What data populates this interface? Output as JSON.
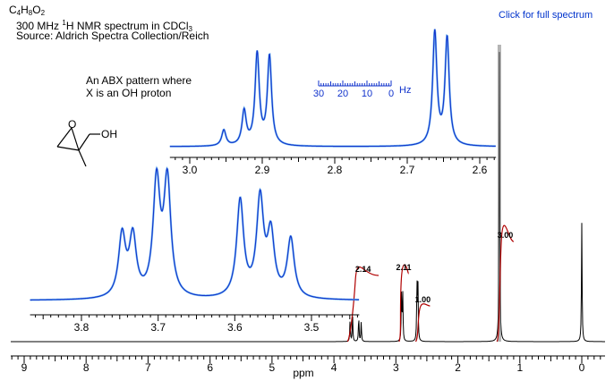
{
  "header": {
    "formula_parts": [
      "C",
      "4",
      "H",
      "8",
      "O",
      "2"
    ],
    "spectrum_pre": "300 MHz ",
    "spectrum_sup": "1",
    "spectrum_mid": "H NMR spectrum in CDCl",
    "spectrum_sub": "3",
    "source": "Source: Aldrich Spectra Collection/Reich",
    "link": "Click for full spectrum"
  },
  "note": {
    "line1": "An ABX pattern where",
    "line2": "X is an OH proton"
  },
  "structure": {
    "label": "OH"
  },
  "colors": {
    "main_trace": "#000000",
    "inset_trace": "#1133cc",
    "inset_overlay": "#55aaee",
    "integral": "#b00000",
    "link": "#0033cc"
  },
  "chart_data": [
    {
      "type": "line",
      "name": "main-spectrum",
      "xlabel": "ppm",
      "xlim": [
        9.3,
        -0.4
      ],
      "x_reversed": true,
      "xticks": [
        "9",
        "8",
        "7",
        "6",
        "5",
        "4",
        "3",
        "2",
        "1",
        "0"
      ],
      "peaks": [
        {
          "ppm": 3.74,
          "height": 0.07
        },
        {
          "ppm": 3.7,
          "height": 0.09
        },
        {
          "ppm": 3.6,
          "height": 0.085
        },
        {
          "ppm": 3.56,
          "height": 0.065
        },
        {
          "ppm": 2.91,
          "height": 0.16
        },
        {
          "ppm": 2.89,
          "height": 0.16
        },
        {
          "ppm": 2.66,
          "height": 0.19
        },
        {
          "ppm": 2.645,
          "height": 0.19
        },
        {
          "ppm": 1.33,
          "height": 1.0
        },
        {
          "ppm": 0.0,
          "height": 0.4
        }
      ],
      "integrals": [
        {
          "label": "2.14",
          "from": 3.78,
          "to": 3.28
        },
        {
          "label": "2.11",
          "from": 2.95,
          "to": 2.8
        },
        {
          "label": "1.00",
          "from": 2.68,
          "to": 2.45
        },
        {
          "label": "3.00",
          "from": 1.37,
          "to": 1.1
        }
      ]
    },
    {
      "type": "line",
      "name": "inset-upper",
      "xlim": [
        3.02,
        2.58
      ],
      "x_reversed": true,
      "xticks": [
        "3.0",
        "2.9",
        "2.8",
        "2.7",
        "2.6"
      ],
      "hz_scale": {
        "labels": [
          "30",
          "20",
          "10",
          "0"
        ],
        "unit": "Hz"
      },
      "peaks": [
        {
          "ppm": 2.953,
          "height": 0.13
        },
        {
          "ppm": 2.925,
          "height": 0.28
        },
        {
          "ppm": 2.907,
          "height": 0.75
        },
        {
          "ppm": 2.89,
          "height": 0.73
        },
        {
          "ppm": 2.662,
          "height": 0.93
        },
        {
          "ppm": 2.645,
          "height": 0.88
        }
      ]
    },
    {
      "type": "line",
      "name": "inset-lower",
      "xlim": [
        3.86,
        3.44
      ],
      "x_reversed": true,
      "xticks": [
        "3.8",
        "3.7",
        "3.6",
        "3.5"
      ],
      "peaks": [
        {
          "ppm": 3.747,
          "height": 0.52
        },
        {
          "ppm": 3.733,
          "height": 0.5
        },
        {
          "ppm": 3.702,
          "height": 0.96
        },
        {
          "ppm": 3.688,
          "height": 0.97
        },
        {
          "ppm": 3.593,
          "height": 0.82
        },
        {
          "ppm": 3.567,
          "height": 0.82
        },
        {
          "ppm": 3.553,
          "height": 0.52
        },
        {
          "ppm": 3.527,
          "height": 0.5
        }
      ]
    }
  ]
}
